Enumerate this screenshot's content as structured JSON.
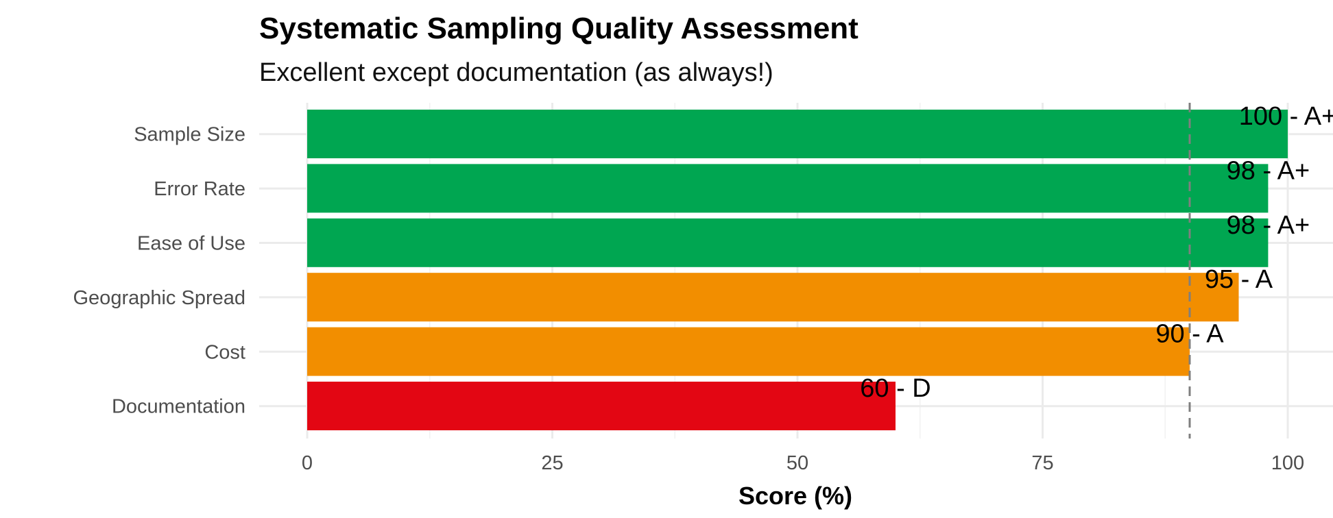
{
  "chart_data": {
    "type": "bar",
    "orientation": "horizontal",
    "title": "Systematic Sampling Quality Assessment",
    "subtitle": "Excellent except documentation (as always!)",
    "xlabel": "Score (%)",
    "ylabel": "",
    "xlim": [
      0,
      100
    ],
    "x_ticks": [
      0,
      25,
      50,
      75,
      100
    ],
    "reference_line": {
      "value": 90,
      "style": "dashed"
    },
    "grid": true,
    "categories": [
      "Sample Size",
      "Error Rate",
      "Ease of Use",
      "Geographic Spread",
      "Cost",
      "Documentation"
    ],
    "values": [
      100,
      98,
      98,
      95,
      90,
      60
    ],
    "labels": [
      "100 - A+",
      "98 - A+",
      "98 - A+",
      "95 - A",
      "90 - A",
      "60 - D"
    ],
    "bar_colors": [
      "#00a651",
      "#00a651",
      "#00a651",
      "#f28e00",
      "#f28e00",
      "#e30613"
    ]
  }
}
